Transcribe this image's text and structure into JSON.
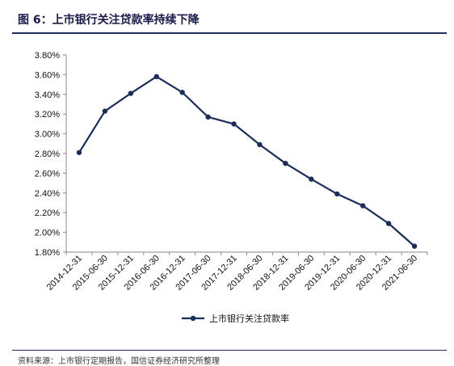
{
  "header": {
    "title": "图 6：上市银行关注贷款率持续下降"
  },
  "footer": {
    "source": "资料来源：上市银行定期报告，国信证券经济研究所整理"
  },
  "colors": {
    "series": "#1c2d5a",
    "rule": "#1c2d5a",
    "axis": "#888888"
  },
  "chart_data": {
    "type": "line",
    "title": "",
    "xlabel": "",
    "ylabel": "",
    "categories": [
      "2014-12-31",
      "2015-06-30",
      "2015-12-31",
      "2016-06-30",
      "2016-12-31",
      "2017-06-30",
      "2017-12-31",
      "2018-06-30",
      "2018-12-31",
      "2019-06-30",
      "2019-12-31",
      "2020-06-30",
      "2020-12-31",
      "2021-06-30"
    ],
    "series": [
      {
        "name": "上市银行关注贷款率",
        "values": [
          2.81,
          3.23,
          3.41,
          3.58,
          3.42,
          3.17,
          3.1,
          2.89,
          2.7,
          2.54,
          2.39,
          2.27,
          2.09,
          1.86
        ]
      }
    ],
    "ylim": [
      1.8,
      3.8
    ],
    "yticks": [
      "1.80%",
      "2.00%",
      "2.20%",
      "2.40%",
      "2.60%",
      "2.80%",
      "3.00%",
      "3.20%",
      "3.40%",
      "3.60%",
      "3.80%"
    ],
    "grid": false,
    "legend": "bottom-center",
    "marker": "circle"
  }
}
